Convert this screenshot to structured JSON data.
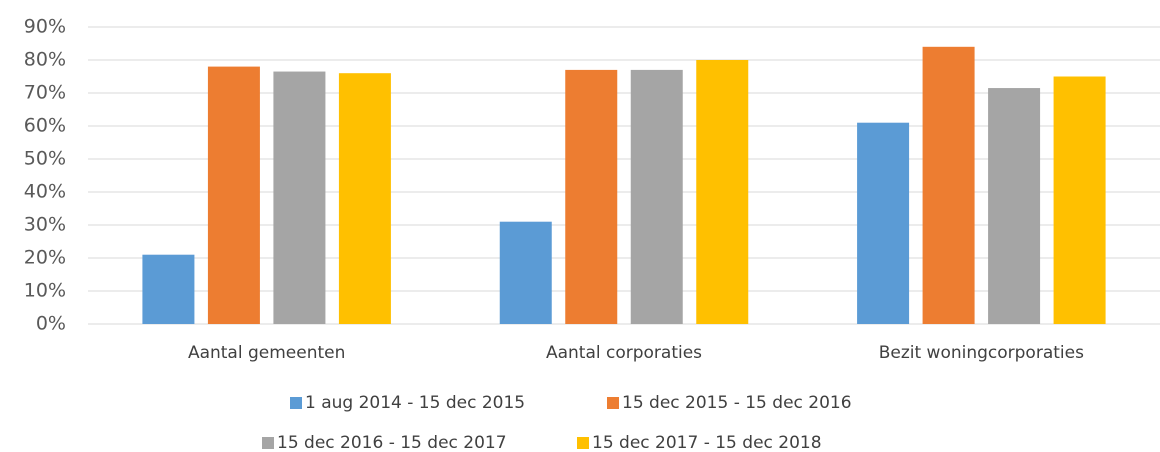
{
  "chart_data": {
    "type": "bar",
    "categories": [
      "Aantal gemeenten",
      "Aantal corporaties",
      "Bezit woningcorporaties"
    ],
    "series": [
      {
        "name": "1 aug 2014 - 15 dec 2015",
        "color": "#5b9bd5",
        "values": [
          21,
          31,
          61
        ]
      },
      {
        "name": "15 dec 2015 - 15 dec 2016",
        "color": "#ed7d31",
        "values": [
          78,
          77,
          84
        ]
      },
      {
        "name": "15 dec 2016 - 15 dec 2017",
        "color": "#a5a5a5",
        "values": [
          76.5,
          77,
          71.5
        ]
      },
      {
        "name": "15 dec 2017 - 15 dec 2018",
        "color": "#ffc000",
        "values": [
          76,
          80,
          75
        ]
      }
    ],
    "ylim": [
      0,
      90
    ],
    "yticks": [
      {
        "value": 0,
        "label": "0%"
      },
      {
        "value": 10,
        "label": "10%"
      },
      {
        "value": 20,
        "label": "20%"
      },
      {
        "value": 30,
        "label": "30%"
      },
      {
        "value": 40,
        "label": "40%"
      },
      {
        "value": 50,
        "label": "50%"
      },
      {
        "value": 60,
        "label": "60%"
      },
      {
        "value": 70,
        "label": "70%"
      },
      {
        "value": 80,
        "label": "80%"
      },
      {
        "value": 90,
        "label": "90%"
      }
    ],
    "grid": true,
    "legend": "bottom"
  }
}
